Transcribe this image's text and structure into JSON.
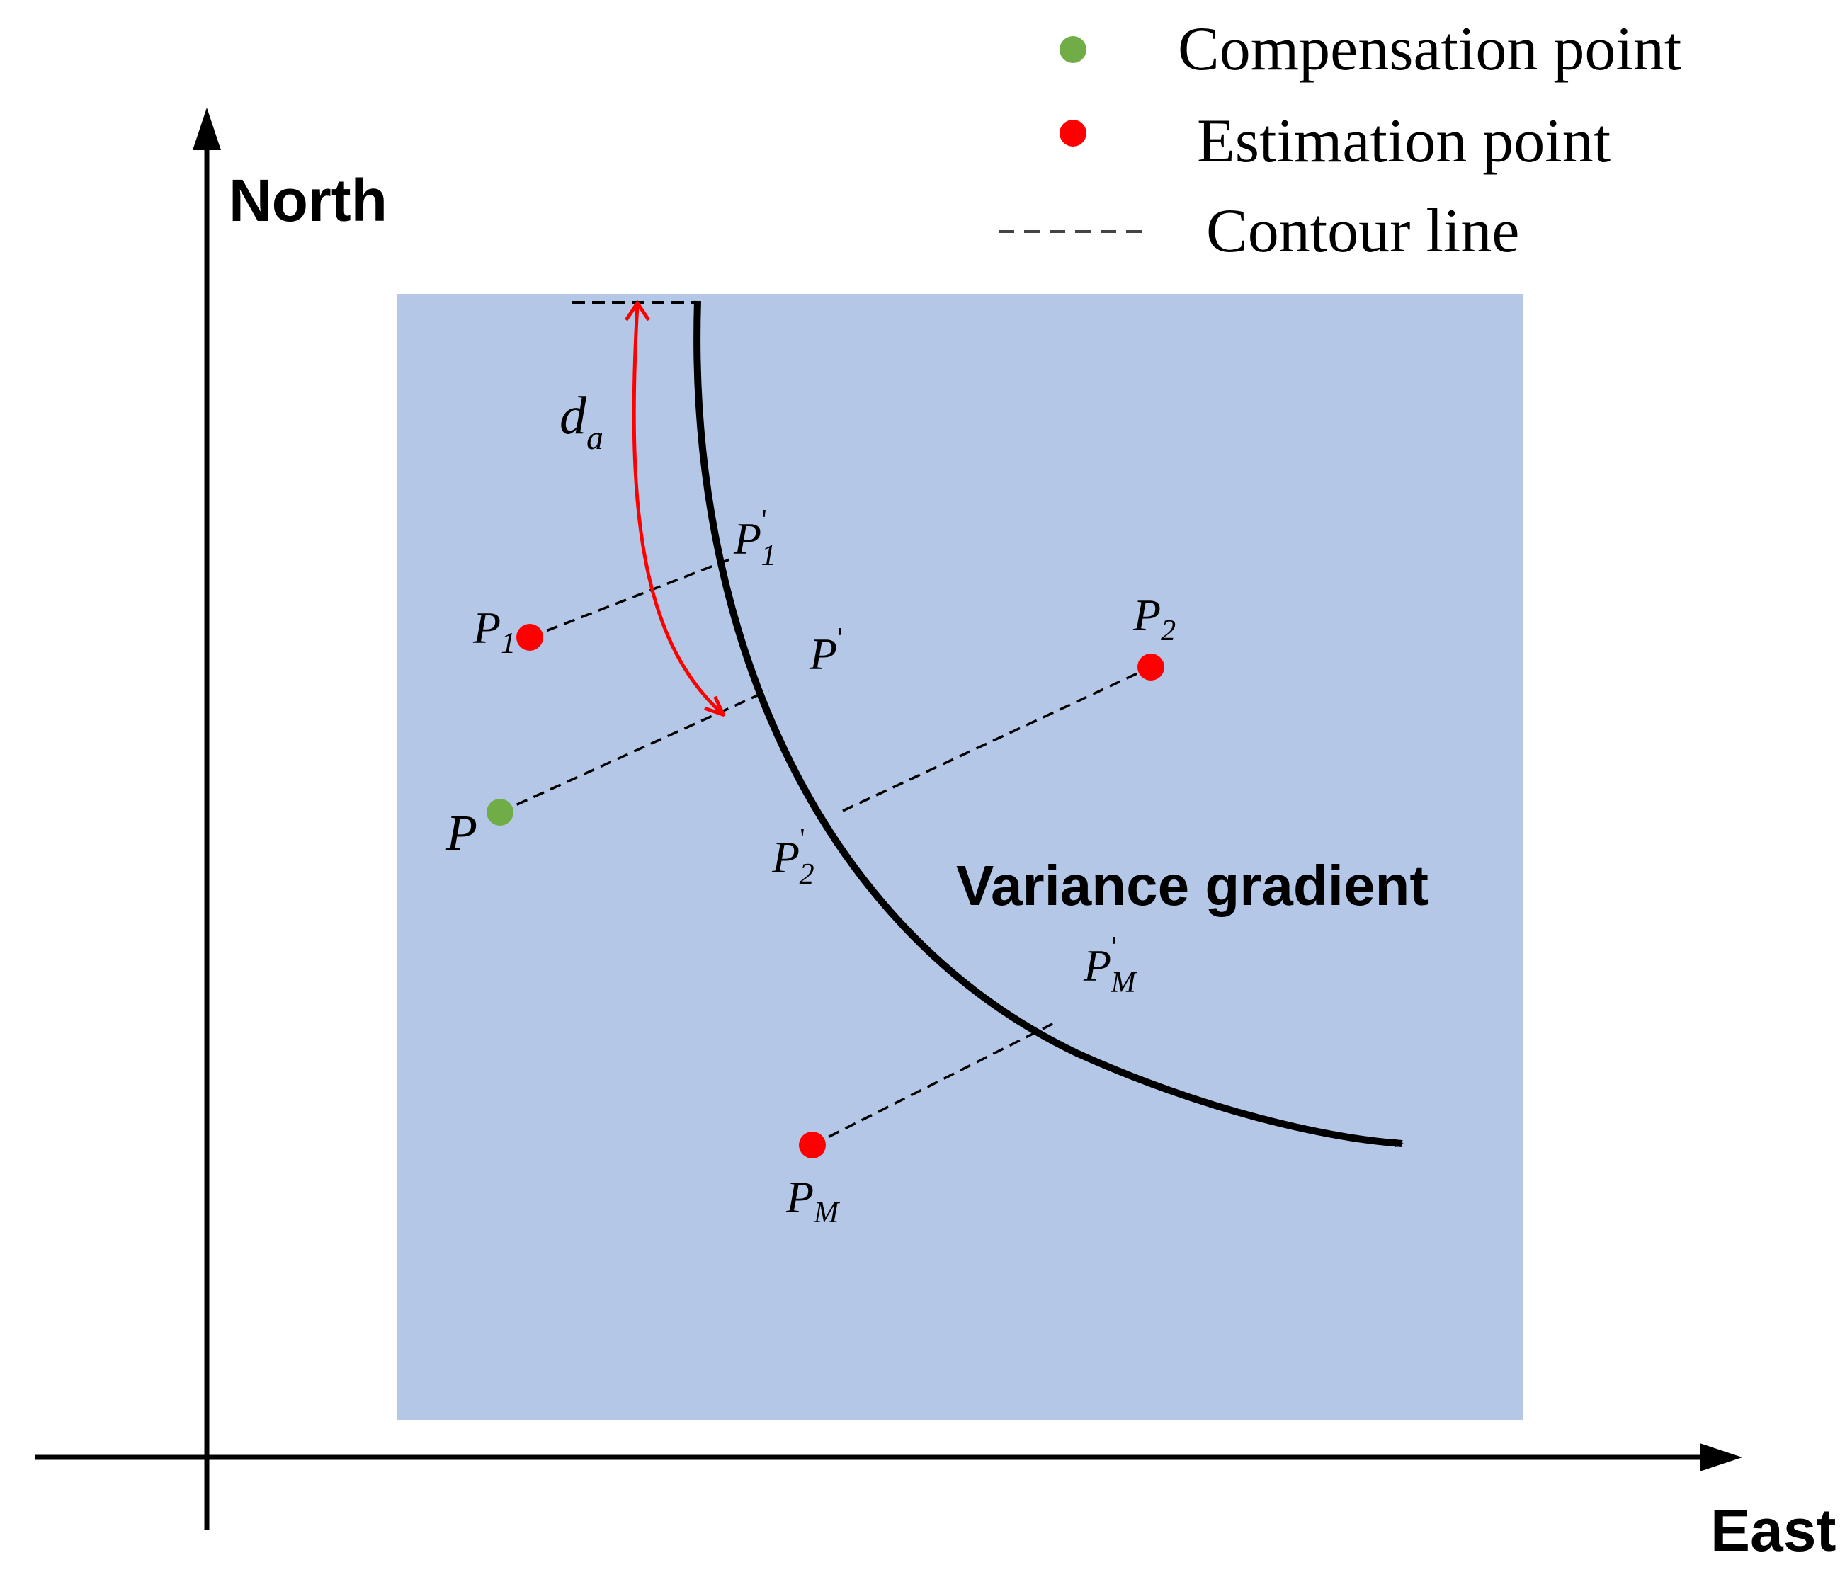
{
  "legend": {
    "compensation_label": "Compensation point",
    "estimation_label": "Estimation point",
    "contour_label": "Contour line"
  },
  "axes": {
    "y_label": "North",
    "x_label": "East"
  },
  "curve_label": "Variance gradient",
  "distance_label": {
    "main": "d",
    "sub": "a"
  },
  "points": {
    "p1": {
      "main": "P",
      "sub": "1"
    },
    "p2": {
      "main": "P",
      "sub": "2"
    },
    "pm": {
      "main": "P",
      "sub": "M"
    },
    "p": {
      "main": "P"
    },
    "p1_prime": {
      "main": "P",
      "sub": "1",
      "sup": "'"
    },
    "p2_prime": {
      "main": "P",
      "sub": "2",
      "sup": "'"
    },
    "pm_prime": {
      "main": "P",
      "sub": "M",
      "sup": "'"
    },
    "p_prime": {
      "main": "P",
      "sup": "'"
    }
  },
  "colors": {
    "region": "#b4c7e7",
    "compensation": "#70ad47",
    "estimation": "#ff0000",
    "arc": "#ff0000",
    "curve": "#000000"
  }
}
